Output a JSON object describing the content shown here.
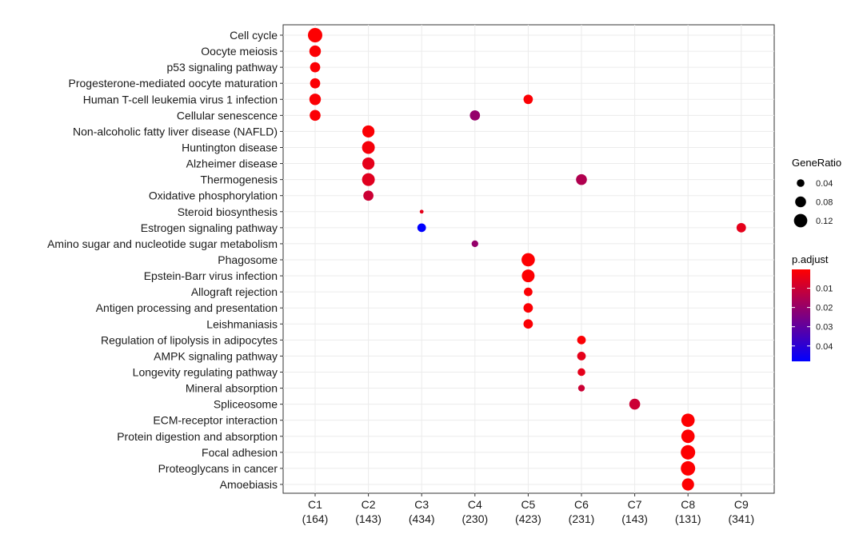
{
  "chart_data": {
    "type": "scatter",
    "title": "",
    "xlabel": "",
    "ylabel": "",
    "x_categories": [
      {
        "name": "C1",
        "count": "(164)"
      },
      {
        "name": "C2",
        "count": "(143)"
      },
      {
        "name": "C3",
        "count": "(434)"
      },
      {
        "name": "C4",
        "count": "(230)"
      },
      {
        "name": "C5",
        "count": "(423)"
      },
      {
        "name": "C6",
        "count": "(231)"
      },
      {
        "name": "C7",
        "count": "(143)"
      },
      {
        "name": "C8",
        "count": "(131)"
      },
      {
        "name": "C9",
        "count": "(341)"
      }
    ],
    "y_categories": [
      "Cell cycle",
      "Oocyte meiosis",
      "p53 signaling pathway",
      "Progesterone-mediated oocyte maturation",
      "Human T-cell leukemia virus 1 infection",
      "Cellular senescence",
      "Non-alcoholic fatty liver disease (NAFLD)",
      "Huntington disease",
      "Alzheimer disease",
      "Thermogenesis",
      "Oxidative phosphorylation",
      "Steroid biosynthesis",
      "Estrogen signaling pathway",
      "Amino sugar and nucleotide sugar metabolism",
      "Phagosome",
      "Epstein-Barr virus infection",
      "Allograft rejection",
      "Antigen processing and presentation",
      "Leishmaniasis",
      "Regulation of lipolysis in adipocytes",
      "AMPK signaling pathway",
      "Longevity regulating pathway",
      "Mineral absorption",
      "Spliceosome",
      "ECM-receptor interaction",
      "Protein digestion and absorption",
      "Focal adhesion",
      "Proteoglycans in cancer",
      "Amoebiasis"
    ],
    "points": [
      {
        "x": "C1",
        "y": "Cell cycle",
        "gene_ratio": 0.14,
        "p_adjust": 0.0005
      },
      {
        "x": "C1",
        "y": "Oocyte meiosis",
        "gene_ratio": 0.09,
        "p_adjust": 0.001
      },
      {
        "x": "C1",
        "y": "p53 signaling pathway",
        "gene_ratio": 0.07,
        "p_adjust": 0.001
      },
      {
        "x": "C1",
        "y": "Progesterone-mediated oocyte maturation",
        "gene_ratio": 0.07,
        "p_adjust": 0.001
      },
      {
        "x": "C1",
        "y": "Human T-cell leukemia virus 1 infection",
        "gene_ratio": 0.09,
        "p_adjust": 0.001
      },
      {
        "x": "C1",
        "y": "Cellular senescence",
        "gene_ratio": 0.08,
        "p_adjust": 0.001
      },
      {
        "x": "C2",
        "y": "Non-alcoholic fatty liver disease (NAFLD)",
        "gene_ratio": 0.1,
        "p_adjust": 0.001
      },
      {
        "x": "C2",
        "y": "Huntington disease",
        "gene_ratio": 0.11,
        "p_adjust": 0.002
      },
      {
        "x": "C2",
        "y": "Alzheimer disease",
        "gene_ratio": 0.1,
        "p_adjust": 0.005
      },
      {
        "x": "C2",
        "y": "Thermogenesis",
        "gene_ratio": 0.11,
        "p_adjust": 0.006
      },
      {
        "x": "C2",
        "y": "Oxidative phosphorylation",
        "gene_ratio": 0.07,
        "p_adjust": 0.01
      },
      {
        "x": "C3",
        "y": "Steroid biosynthesis",
        "gene_ratio": 0.01,
        "p_adjust": 0.005
      },
      {
        "x": "C3",
        "y": "Estrogen signaling pathway",
        "gene_ratio": 0.05,
        "p_adjust": 0.05
      },
      {
        "x": "C4",
        "y": "Cellular senescence",
        "gene_ratio": 0.07,
        "p_adjust": 0.02
      },
      {
        "x": "C4",
        "y": "Amino sugar and nucleotide sugar metabolism",
        "gene_ratio": 0.03,
        "p_adjust": 0.02
      },
      {
        "x": "C5",
        "y": "Human T-cell leukemia virus 1 infection",
        "gene_ratio": 0.06,
        "p_adjust": 0.001
      },
      {
        "x": "C5",
        "y": "Phagosome",
        "gene_ratio": 0.12,
        "p_adjust": 0.0005
      },
      {
        "x": "C5",
        "y": "Epstein-Barr virus infection",
        "gene_ratio": 0.11,
        "p_adjust": 0.0005
      },
      {
        "x": "C5",
        "y": "Allograft rejection",
        "gene_ratio": 0.05,
        "p_adjust": 0.001
      },
      {
        "x": "C5",
        "y": "Antigen processing and presentation",
        "gene_ratio": 0.06,
        "p_adjust": 0.001
      },
      {
        "x": "C5",
        "y": "Leishmaniasis",
        "gene_ratio": 0.06,
        "p_adjust": 0.001
      },
      {
        "x": "C6",
        "y": "Thermogenesis",
        "gene_ratio": 0.08,
        "p_adjust": 0.015
      },
      {
        "x": "C6",
        "y": "Regulation of lipolysis in adipocytes",
        "gene_ratio": 0.05,
        "p_adjust": 0.001
      },
      {
        "x": "C6",
        "y": "AMPK signaling pathway",
        "gene_ratio": 0.05,
        "p_adjust": 0.005
      },
      {
        "x": "C6",
        "y": "Longevity regulating pathway",
        "gene_ratio": 0.04,
        "p_adjust": 0.005
      },
      {
        "x": "C6",
        "y": "Mineral absorption",
        "gene_ratio": 0.03,
        "p_adjust": 0.01
      },
      {
        "x": "C7",
        "y": "Spliceosome",
        "gene_ratio": 0.08,
        "p_adjust": 0.01
      },
      {
        "x": "C8",
        "y": "ECM-receptor interaction",
        "gene_ratio": 0.12,
        "p_adjust": 0.0005
      },
      {
        "x": "C8",
        "y": "Protein digestion and absorption",
        "gene_ratio": 0.12,
        "p_adjust": 0.0005
      },
      {
        "x": "C8",
        "y": "Focal adhesion",
        "gene_ratio": 0.14,
        "p_adjust": 0.0005
      },
      {
        "x": "C8",
        "y": "Proteoglycans in cancer",
        "gene_ratio": 0.14,
        "p_adjust": 0.0005
      },
      {
        "x": "C8",
        "y": "Amoebiasis",
        "gene_ratio": 0.1,
        "p_adjust": 0.0005
      },
      {
        "x": "C9",
        "y": "Estrogen signaling pathway",
        "gene_ratio": 0.06,
        "p_adjust": 0.005
      }
    ],
    "size_legend": {
      "title": "GeneRatio",
      "values": [
        0.04,
        0.08,
        0.12
      ],
      "labels": [
        "0.04",
        "0.08",
        "0.12"
      ]
    },
    "color_legend": {
      "title": "p.adjust",
      "low_color": "#ff0000",
      "high_color": "#0000ff",
      "range": [
        0.0002,
        0.048
      ],
      "ticks": [
        0.01,
        0.02,
        0.03,
        0.04
      ],
      "labels": [
        "0.01",
        "0.02",
        "0.03",
        "0.04"
      ]
    },
    "grid": true,
    "legend_position": "right"
  }
}
